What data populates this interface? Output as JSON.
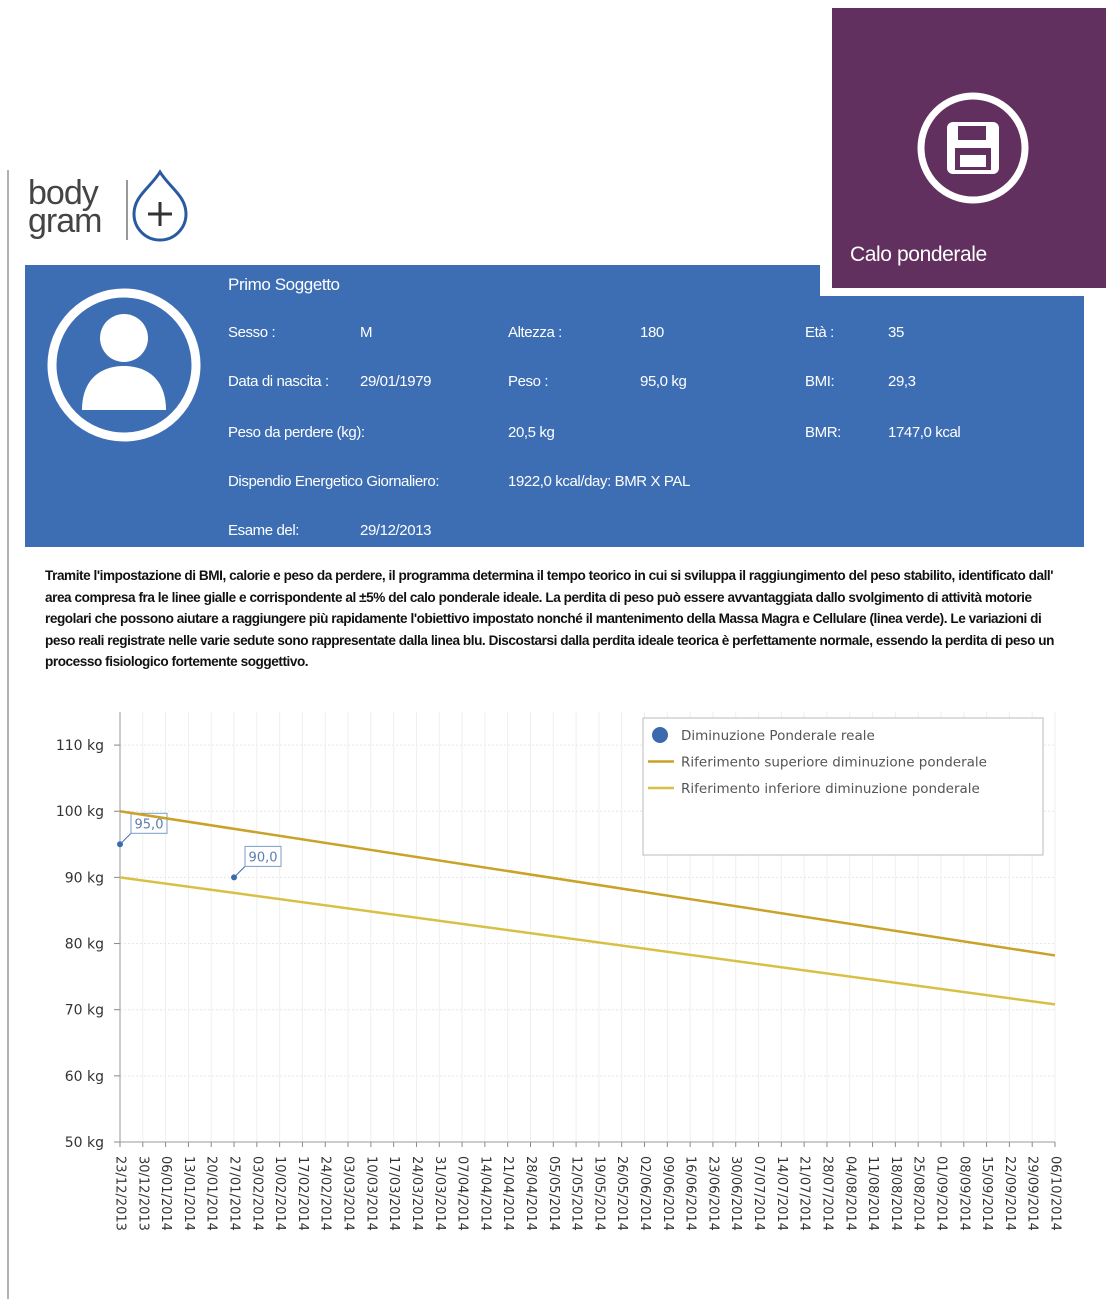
{
  "tile": {
    "title": "Calo ponderale"
  },
  "logo": {
    "line1": "body",
    "line2": "gram"
  },
  "profile": {
    "name": "Primo Soggetto",
    "sex_label": "Sesso :",
    "sex": "M",
    "height_label": "Altezza :",
    "height": "180",
    "age_label": "Età :",
    "age": "35",
    "birth_label": "Data di nascita :",
    "birth": "29/01/1979",
    "weight_label": "Peso :",
    "weight": "95,0 kg",
    "bmi_label": "BMI:",
    "bmi": "29,3",
    "to_lose_label": "Peso da perdere (kg):",
    "to_lose": "20,5 kg",
    "bmr_label": "BMR:",
    "bmr": "1747,0 kcal",
    "energy_label": "Dispendio Energetico Giornaliero:",
    "energy": "1922,0 kcal/day: BMR X PAL",
    "exam_label": "Esame del:",
    "exam": "29/12/2013"
  },
  "description": "Tramite l'impostazione di BMI, calorie e peso da perdere, il programma determina il tempo teorico in cui si sviluppa il raggiungimento del peso stabilito, identificato dall' area compresa fra le linee gialle e corrispondente al ±5% del calo ponderale ideale. La perdita di peso può essere avvantaggiata dallo svolgimento di attività motorie regolari che possono aiutare a raggiungere più rapidamente l'obiettivo impostato nonché il mantenimento della Massa Magra e Cellulare (linea verde). Le variazioni di peso reali registrate nelle varie sedute sono rappresentate dalla linea blu. Discostarsi dalla perdita ideale teorica è perfettamente normale, essendo la perdita di peso un processo fisiologico fortemente soggettivo.",
  "chart_data": {
    "type": "line",
    "xlim": [
      "23/12/2013",
      "06/10/2014"
    ],
    "xticks": [
      "23/12/2013",
      "30/12/2013",
      "06/01/2014",
      "13/01/2014",
      "20/01/2014",
      "27/01/2014",
      "03/02/2014",
      "10/02/2014",
      "17/02/2014",
      "24/02/2014",
      "03/03/2014",
      "10/03/2014",
      "17/03/2014",
      "24/03/2014",
      "31/03/2014",
      "07/04/2014",
      "14/04/2014",
      "21/04/2014",
      "28/04/2014",
      "05/05/2014",
      "12/05/2014",
      "19/05/2014",
      "26/05/2014",
      "02/06/2014",
      "09/06/2014",
      "16/06/2014",
      "23/06/2014",
      "30/06/2014",
      "07/07/2014",
      "14/07/2014",
      "21/07/2014",
      "28/07/2014",
      "04/08/2014",
      "11/08/2014",
      "18/08/2014",
      "25/08/2014",
      "01/09/2014",
      "08/09/2014",
      "15/09/2014",
      "22/09/2014",
      "29/09/2014",
      "06/10/2014"
    ],
    "ylim": [
      50,
      115
    ],
    "yticks": [
      {
        "value": 50,
        "label": "50 kg"
      },
      {
        "value": 60,
        "label": "60 kg"
      },
      {
        "value": 70,
        "label": "70 kg"
      },
      {
        "value": 80,
        "label": "80 kg"
      },
      {
        "value": 90,
        "label": "90 kg"
      },
      {
        "value": 100,
        "label": "100 kg"
      },
      {
        "value": 110,
        "label": "110 kg"
      }
    ],
    "grid": true,
    "legend": "top-right",
    "series": [
      {
        "name": "Diminuzione Ponderale reale",
        "color": "#3b6aae",
        "markers": true,
        "x": [
          "23/12/2013",
          "27/01/2014"
        ],
        "values": [
          95.0,
          90.0
        ],
        "value_labels": [
          "95,0",
          "90,0"
        ]
      },
      {
        "name": "Riferimento superiore diminuzione ponderale",
        "color": "#c9a227",
        "x": [
          "23/12/2013",
          "06/10/2014"
        ],
        "values": [
          100,
          78.2
        ]
      },
      {
        "name": "Riferimento inferiore diminuzione ponderale",
        "color": "#d8c046",
        "x": [
          "23/12/2013",
          "06/10/2014"
        ],
        "values": [
          90,
          70.8
        ]
      }
    ]
  }
}
